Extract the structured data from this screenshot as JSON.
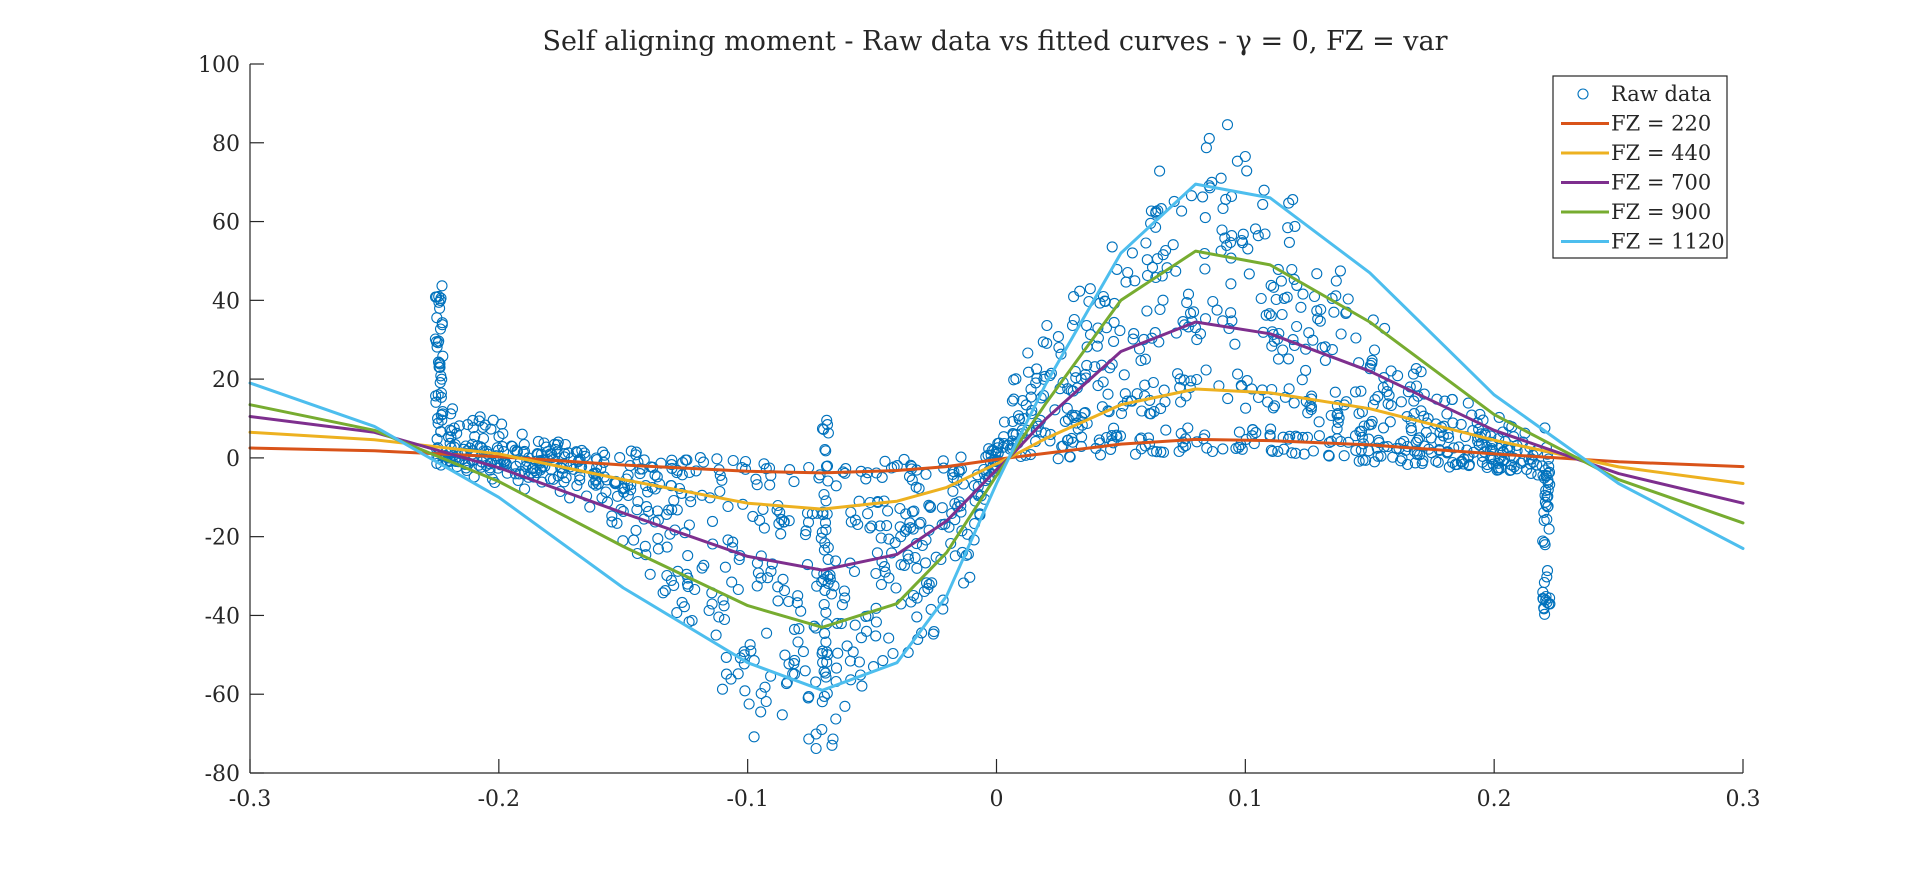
{
  "chart_data": {
    "type": "scatter",
    "title": "Self aligning moment - Raw data vs fitted curves - γ = 0, FZ = var",
    "xlabel": "",
    "ylabel": "",
    "xlim": [
      -0.3,
      0.3
    ],
    "ylim": [
      -80,
      100
    ],
    "x_ticks": [
      -0.3,
      -0.2,
      -0.1,
      0,
      0.1,
      0.2,
      0.3
    ],
    "x_tick_labels": [
      "-0.3",
      "-0.2",
      "-0.1",
      "0",
      "0.1",
      "0.2",
      "0.3"
    ],
    "y_ticks": [
      -80,
      -60,
      -40,
      -20,
      0,
      20,
      40,
      60,
      80,
      100
    ],
    "y_tick_labels": [
      "-80",
      "-60",
      "-40",
      "-20",
      "0",
      "20",
      "40",
      "60",
      "80",
      "100"
    ],
    "grid": false,
    "legend_position": "top-right",
    "raw_data": {
      "name": "Raw data",
      "color": "#0072BD",
      "marker": "circle-open",
      "clusters": [
        {
          "fz": 220,
          "amp": 4.6
        },
        {
          "fz": 440,
          "amp": 17.5
        },
        {
          "fz": 700,
          "amp": 34.5
        },
        {
          "fz": 900,
          "amp": 52.5
        },
        {
          "fz": 1120,
          "amp": 71
        }
      ]
    },
    "series": [
      {
        "name": "FZ = 220",
        "color": "#D95319",
        "x": [
          -0.3,
          -0.25,
          -0.2,
          -0.15,
          -0.1,
          -0.07,
          -0.04,
          -0.02,
          0,
          0.005,
          0.02,
          0.05,
          0.08,
          0.11,
          0.15,
          0.2,
          0.25,
          0.3
        ],
        "values": [
          2.5,
          1.8,
          0.3,
          -1.8,
          -3.4,
          -3.8,
          -3.2,
          -2.2,
          -0.4,
          0.0,
          1.2,
          3.5,
          4.7,
          4.4,
          3.3,
          1.0,
          -1.0,
          -2.2
        ]
      },
      {
        "name": "FZ = 440",
        "color": "#EDB120",
        "x": [
          -0.3,
          -0.25,
          -0.2,
          -0.15,
          -0.1,
          -0.07,
          -0.04,
          -0.02,
          0,
          0.005,
          0.02,
          0.05,
          0.08,
          0.11,
          0.15,
          0.2,
          0.25,
          0.3
        ],
        "values": [
          6.5,
          4.6,
          1.0,
          -5.5,
          -11.5,
          -13.0,
          -11.0,
          -7.5,
          -1.5,
          0.0,
          5.0,
          13.5,
          17.5,
          16.5,
          12.5,
          4.5,
          -2.3,
          -6.5
        ]
      },
      {
        "name": "FZ = 700",
        "color": "#7E2F8E",
        "x": [
          -0.3,
          -0.25,
          -0.2,
          -0.15,
          -0.1,
          -0.07,
          -0.04,
          -0.02,
          0,
          0.005,
          0.02,
          0.05,
          0.08,
          0.11,
          0.15,
          0.2,
          0.25,
          0.3
        ],
        "values": [
          10.5,
          6.5,
          -2.5,
          -14.0,
          -25.0,
          -28.5,
          -24.5,
          -16.0,
          -3.0,
          0.0,
          10.0,
          27.0,
          34.5,
          31.5,
          22.0,
          7.0,
          -4.0,
          -11.5
        ]
      },
      {
        "name": "FZ = 900",
        "color": "#77AC30",
        "x": [
          -0.3,
          -0.25,
          -0.2,
          -0.15,
          -0.1,
          -0.07,
          -0.04,
          -0.02,
          0,
          0.005,
          0.02,
          0.05,
          0.08,
          0.11,
          0.15,
          0.2,
          0.25,
          0.3
        ],
        "values": [
          13.5,
          7.0,
          -6.0,
          -22.5,
          -37.5,
          -43.0,
          -37.0,
          -24.0,
          -4.5,
          0.0,
          14.0,
          40.0,
          52.5,
          49.0,
          34.5,
          11.0,
          -5.5,
          -16.5
        ]
      },
      {
        "name": "FZ = 1120",
        "color": "#4DBEEE",
        "x": [
          -0.3,
          -0.25,
          -0.2,
          -0.15,
          -0.1,
          -0.07,
          -0.04,
          -0.02,
          0,
          0.005,
          0.02,
          0.05,
          0.08,
          0.11,
          0.15,
          0.2,
          0.25,
          0.3
        ],
        "values": [
          19.0,
          8.0,
          -10.0,
          -33.0,
          -52.0,
          -59.0,
          -52.0,
          -35.0,
          -6.5,
          0.0,
          19.0,
          52.0,
          69.5,
          66.0,
          47.0,
          16.0,
          -6.5,
          -23.0
        ]
      }
    ]
  }
}
